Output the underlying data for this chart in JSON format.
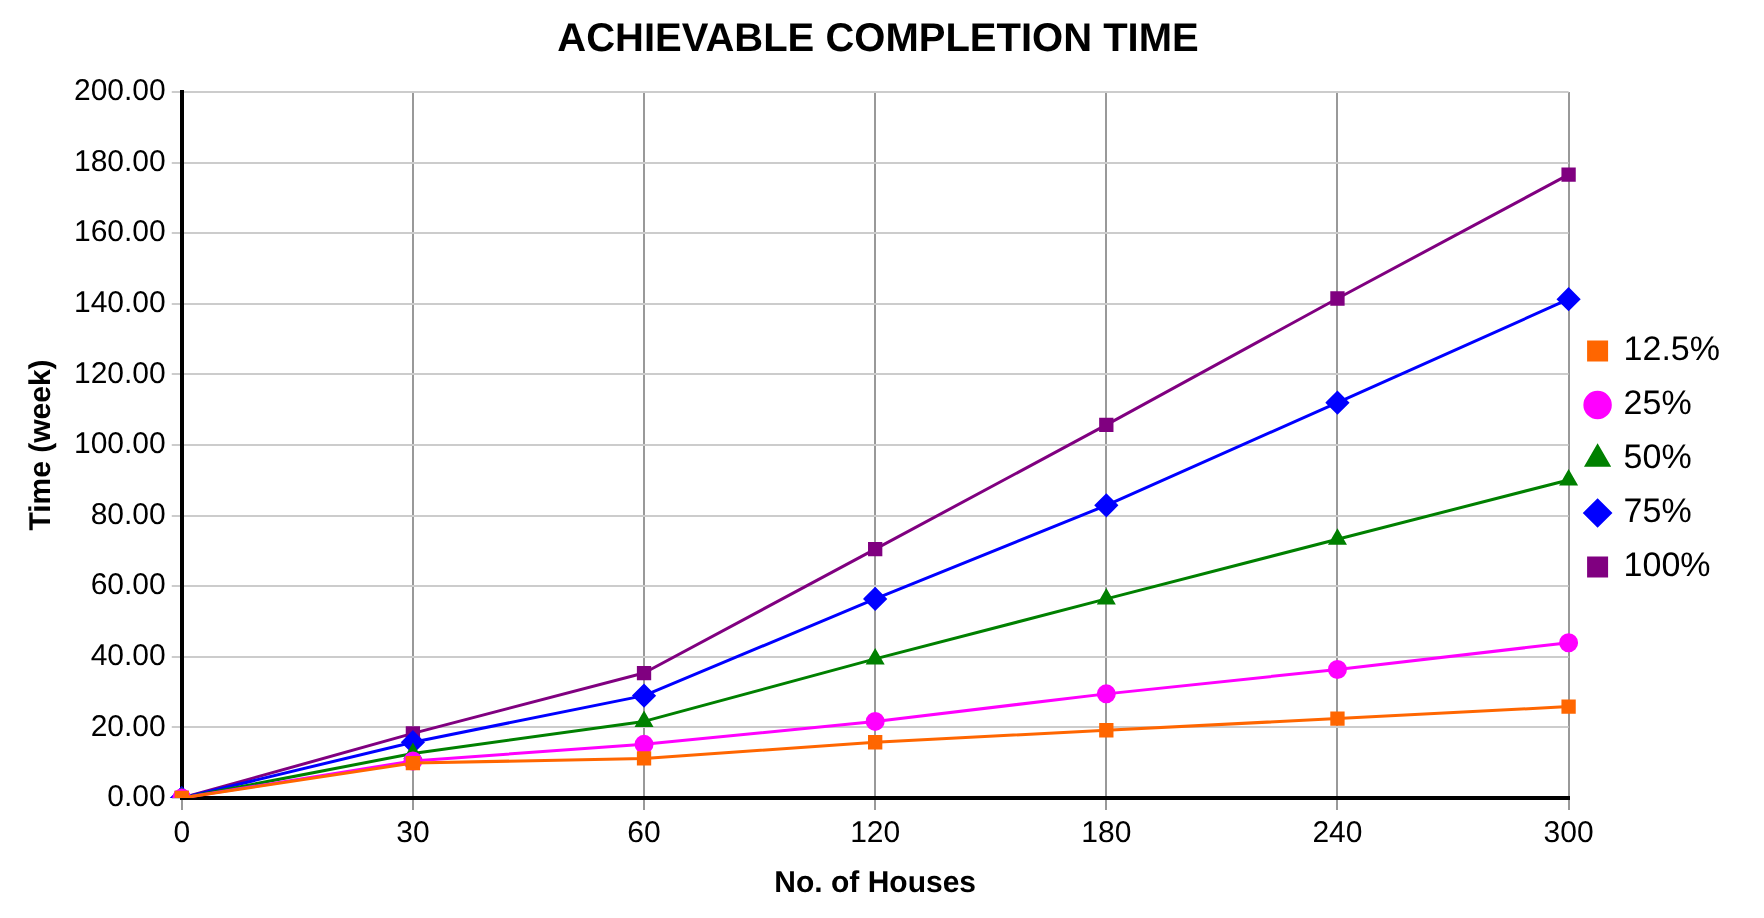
{
  "chart_data": {
    "type": "line",
    "title": "ACHIEVABLE COMPLETION TIME",
    "xlabel": "No. of Houses",
    "ylabel": "Time (week)",
    "categories": [
      "0",
      "30",
      "60",
      "120",
      "180",
      "240",
      "300"
    ],
    "series": [
      {
        "name": "12.5%",
        "color": "#ff6600",
        "marker": "square",
        "values": [
          0,
          9.9,
          11.2,
          15.8,
          19.2,
          22.5,
          25.9
        ]
      },
      {
        "name": "25%",
        "color": "#ff00ff",
        "marker": "circle",
        "values": [
          0,
          10.5,
          15.2,
          21.7,
          29.5,
          36.4,
          44
        ]
      },
      {
        "name": "50%",
        "color": "#008000",
        "marker": "triangle",
        "values": [
          0,
          12.6,
          21.7,
          39.4,
          56.4,
          73.3,
          90.1
        ]
      },
      {
        "name": "75%",
        "color": "#0000ff",
        "marker": "diamond",
        "values": [
          0,
          15.8,
          29,
          56.4,
          82.9,
          112,
          141.3
        ]
      },
      {
        "name": "100%",
        "color": "#800080",
        "marker": "square",
        "values": [
          0,
          18.3,
          35.4,
          70.5,
          105.7,
          141.5,
          176.6
        ]
      }
    ],
    "ylim": [
      0,
      200
    ],
    "yticks": [
      {
        "value": 0,
        "label": "0.00"
      },
      {
        "value": 20,
        "label": "20.00"
      },
      {
        "value": 40,
        "label": "40.00"
      },
      {
        "value": 60,
        "label": "60.00"
      },
      {
        "value": 80,
        "label": "80.00"
      },
      {
        "value": 100,
        "label": "100.00"
      },
      {
        "value": 120,
        "label": "120.00"
      },
      {
        "value": 140,
        "label": "140.00"
      },
      {
        "value": 160,
        "label": "160.00"
      },
      {
        "value": 180,
        "label": "180.00"
      },
      {
        "value": 200,
        "label": "200.00"
      }
    ],
    "grid": true,
    "legend": "right",
    "line_style": "solid"
  }
}
